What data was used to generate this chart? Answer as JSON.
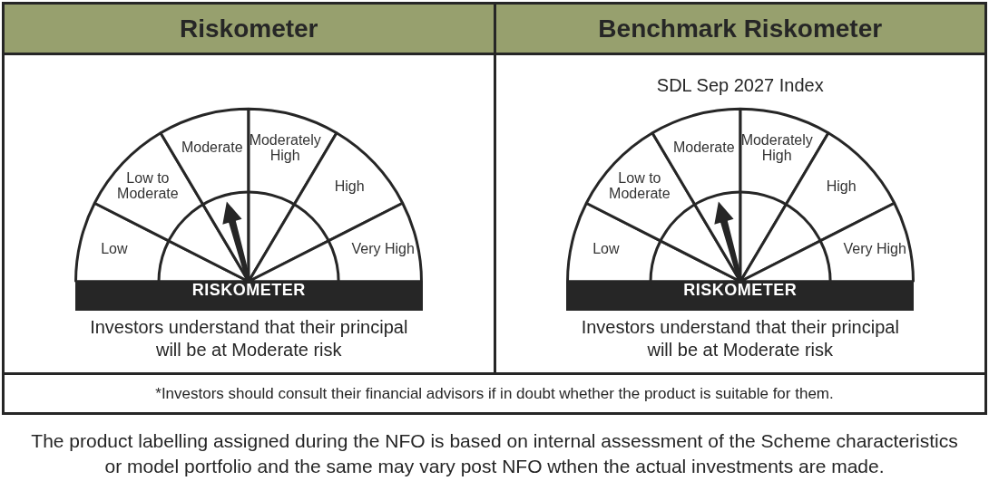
{
  "chart_data": [
    {
      "type": "pie",
      "title": "Riskometer",
      "categories": [
        "Low",
        "Low to Moderate",
        "Moderate",
        "Moderately High",
        "High",
        "Very High"
      ],
      "values": [
        15,
        18,
        17,
        17,
        18,
        15
      ],
      "colors": [
        "#ffffff",
        "#ffffff",
        "#ffffff",
        "#ffffff",
        "#ffffff",
        "#ffffff"
      ],
      "needle": "Moderate",
      "annotations": [
        "RISKOMETER",
        "Investors understand that their principal will be at Moderate risk"
      ]
    },
    {
      "type": "pie",
      "title": "Benchmark Riskometer",
      "subtitle": "SDL Sep 2027 Index",
      "categories": [
        "Low",
        "Low to Moderate",
        "Moderate",
        "Moderately High",
        "High",
        "Very High"
      ],
      "values": [
        15,
        18,
        17,
        17,
        18,
        15
      ],
      "colors": [
        "#ffffff",
        "#ffffff",
        "#ffffff",
        "#ffffff",
        "#ffffff",
        "#ffffff"
      ],
      "needle": "Moderate",
      "annotations": [
        "RISKOMETER",
        "Investors understand that their principal will be at Moderate risk"
      ]
    },
    {
      "type": "other",
      "annotations": [
        "*Investors should consult their financial advisors if in doubt whether the product is suitable for them.",
        "The product labelling assigned during the NFO is based on internal assessment of the Scheme characteristics or model portfolio and the same may vary post NFO wthen the actual investments are made."
      ]
    }
  ]
}
